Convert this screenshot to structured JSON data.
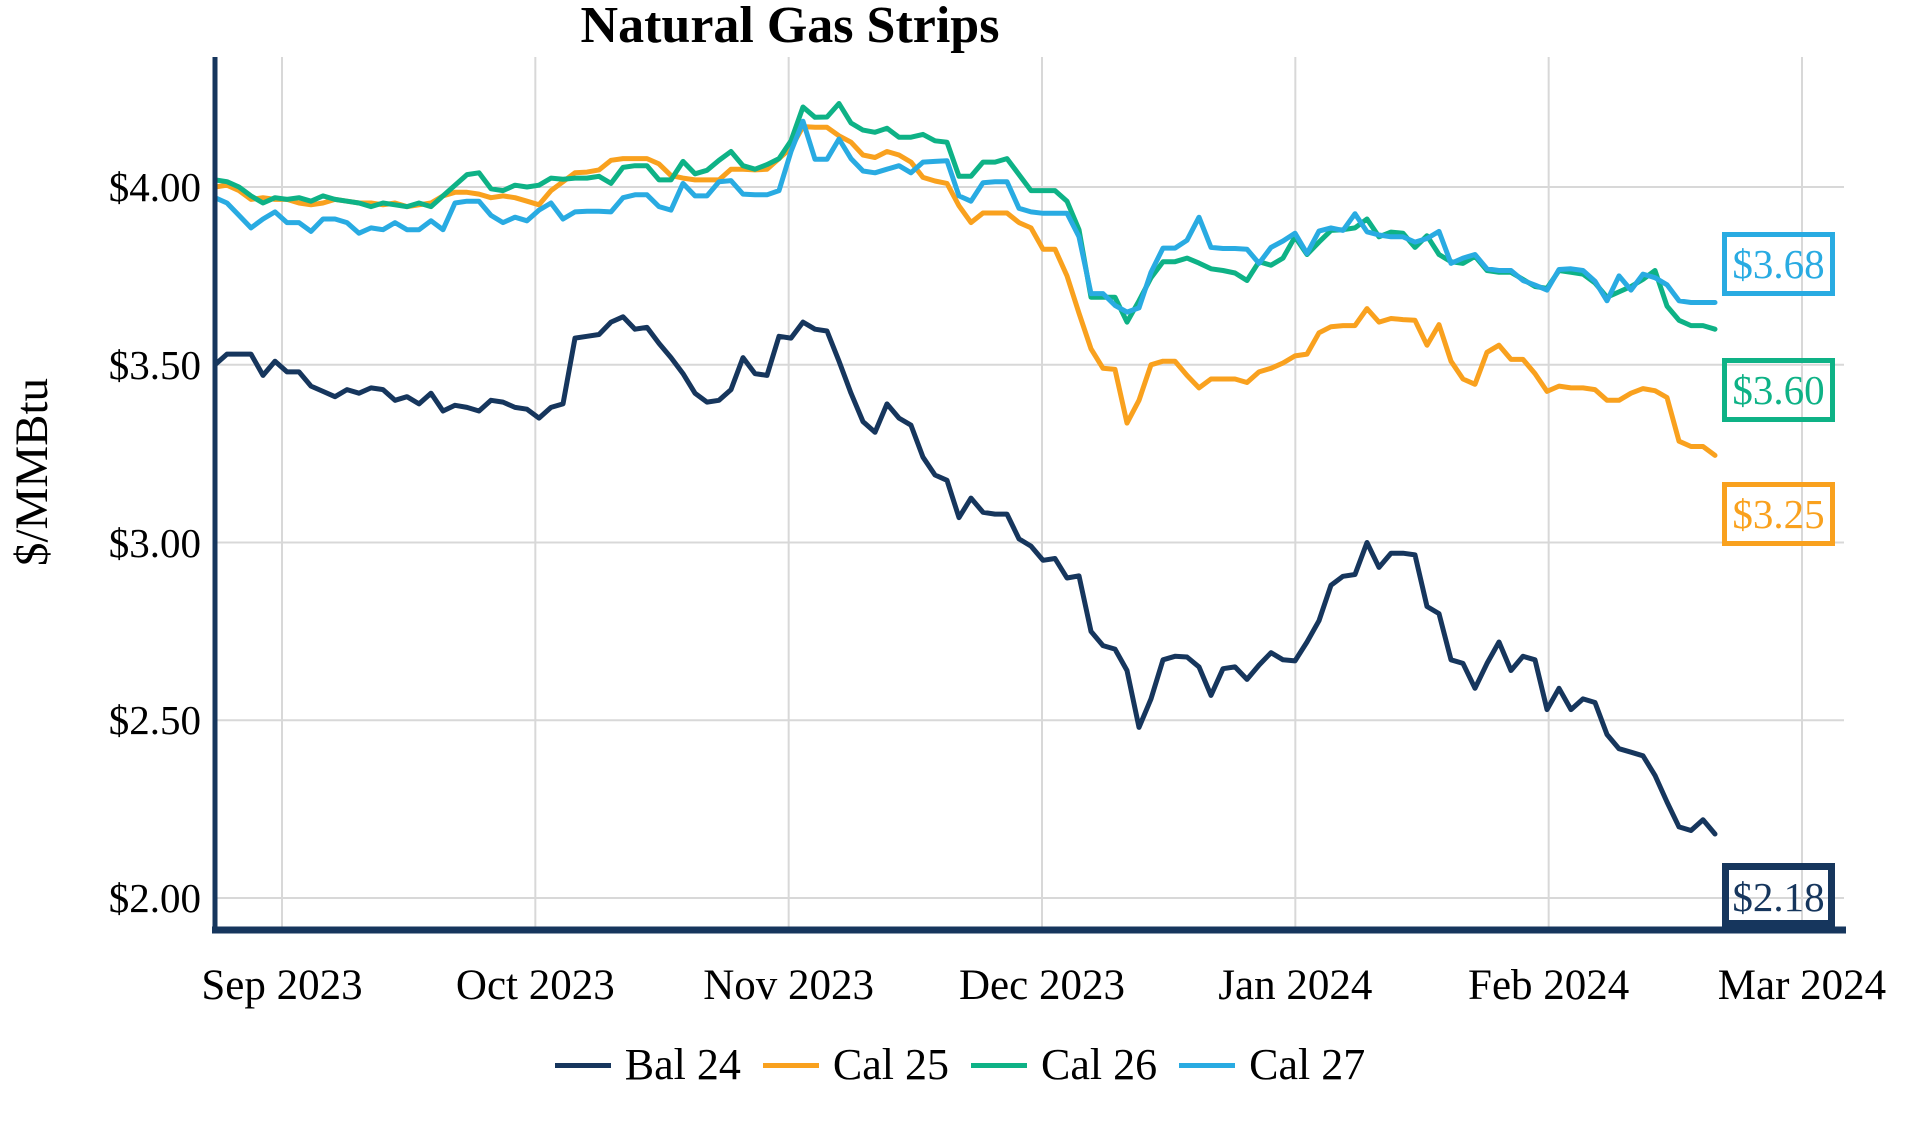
{
  "title": "Natural Gas Strips",
  "y_axis": {
    "label": "$/MMBtu",
    "tick_labels": [
      "$4.00",
      "$3.50",
      "$3.00",
      "$2.50",
      "$2.00"
    ],
    "tick_values": [
      4.0,
      3.5,
      3.0,
      2.5,
      2.0
    ]
  },
  "x_axis": {
    "tick_labels": [
      "Sep 2023",
      "Oct 2023",
      "Nov 2023",
      "Dec 2023",
      "Jan 2024",
      "Feb 2024",
      "Mar 2024"
    ]
  },
  "colors": {
    "bal24": "#16365D",
    "cal25": "#F9A11E",
    "cal26": "#0EB286",
    "cal27": "#29ABE2",
    "gridline": "#D8D8D8",
    "axis": "#16365D"
  },
  "chart_data": {
    "type": "line",
    "title": "Natural Gas Strips",
    "ylabel": "$/MMBtu",
    "xlabel": "",
    "x_tick_labels": [
      "Sep 2023",
      "Oct 2023",
      "Nov 2023",
      "Dec 2023",
      "Jan 2024",
      "Feb 2024",
      "Mar 2024"
    ],
    "y_tick_labels": [
      "$4.00",
      "$3.50",
      "$3.00",
      "$2.50",
      "$2.00"
    ],
    "y_tick_values": [
      4.0,
      3.5,
      3.0,
      2.5,
      2.0
    ],
    "ylim": [
      1.91,
      4.37
    ],
    "grid": true,
    "legend_position": "bottom",
    "series": [
      {
        "name": "Bal 24",
        "color": "#16365D",
        "end_label": "$2.18",
        "values": [
          3.5,
          3.53,
          3.53,
          3.53,
          3.47,
          3.51,
          3.48,
          3.48,
          3.44,
          3.425,
          3.41,
          3.43,
          3.42,
          3.435,
          3.43,
          3.4,
          3.41,
          3.39,
          3.42,
          3.37,
          3.386,
          3.38,
          3.37,
          3.4,
          3.395,
          3.38,
          3.375,
          3.35,
          3.38,
          3.39,
          3.575,
          3.58,
          3.585,
          3.62,
          3.635,
          3.6,
          3.605,
          3.56,
          3.52,
          3.475,
          3.42,
          3.395,
          3.4,
          3.43,
          3.52,
          3.475,
          3.47,
          3.58,
          3.575,
          3.62,
          3.6,
          3.595,
          3.51,
          3.42,
          3.34,
          3.31,
          3.39,
          3.35,
          3.33,
          3.24,
          3.19,
          3.175,
          3.07,
          3.125,
          3.085,
          3.08,
          3.08,
          3.01,
          2.99,
          2.95,
          2.955,
          2.9,
          2.906,
          2.75,
          2.71,
          2.7,
          2.64,
          2.48,
          2.56,
          2.67,
          2.68,
          2.678,
          2.65,
          2.57,
          2.645,
          2.65,
          2.615,
          2.655,
          2.69,
          2.67,
          2.667,
          2.72,
          2.78,
          2.88,
          2.905,
          2.91,
          3.0,
          2.93,
          2.97,
          2.97,
          2.965,
          2.82,
          2.8,
          2.67,
          2.66,
          2.59,
          2.66,
          2.72,
          2.64,
          2.68,
          2.67,
          2.53,
          2.59,
          2.53,
          2.56,
          2.55,
          2.46,
          2.42,
          2.41,
          2.4,
          2.345,
          2.27,
          2.2,
          2.19,
          2.22,
          2.18
        ]
      },
      {
        "name": "Cal 25",
        "color": "#F9A11E",
        "end_label": "$3.25",
        "values": [
          4.0,
          4.005,
          3.99,
          3.965,
          3.97,
          3.965,
          3.965,
          3.955,
          3.95,
          3.955,
          3.965,
          3.96,
          3.955,
          3.955,
          3.95,
          3.955,
          3.945,
          3.95,
          3.955,
          3.975,
          3.985,
          3.985,
          3.98,
          3.97,
          3.975,
          3.97,
          3.96,
          3.95,
          3.99,
          4.015,
          4.04,
          4.042,
          4.048,
          4.075,
          4.08,
          4.08,
          4.08,
          4.065,
          4.032,
          4.025,
          4.02,
          4.02,
          4.02,
          4.05,
          4.05,
          4.048,
          4.05,
          4.08,
          4.11,
          4.17,
          4.168,
          4.168,
          4.144,
          4.126,
          4.09,
          4.083,
          4.1,
          4.09,
          4.07,
          4.027,
          4.017,
          4.01,
          3.947,
          3.9,
          3.927,
          3.927,
          3.927,
          3.9,
          3.885,
          3.825,
          3.825,
          3.75,
          3.645,
          3.545,
          3.49,
          3.487,
          3.336,
          3.4,
          3.5,
          3.51,
          3.51,
          3.47,
          3.435,
          3.46,
          3.46,
          3.46,
          3.45,
          3.48,
          3.49,
          3.505,
          3.525,
          3.53,
          3.59,
          3.607,
          3.61,
          3.61,
          3.658,
          3.62,
          3.63,
          3.627,
          3.625,
          3.555,
          3.613,
          3.51,
          3.46,
          3.445,
          3.535,
          3.555,
          3.515,
          3.515,
          3.475,
          3.425,
          3.44,
          3.435,
          3.435,
          3.43,
          3.4,
          3.4,
          3.42,
          3.433,
          3.427,
          3.408,
          3.285,
          3.27,
          3.27,
          3.245
        ]
      },
      {
        "name": "Cal 26",
        "color": "#0EB286",
        "end_label": "$3.60",
        "values": [
          4.02,
          4.015,
          4.0,
          3.975,
          3.955,
          3.97,
          3.965,
          3.97,
          3.96,
          3.975,
          3.965,
          3.96,
          3.955,
          3.945,
          3.955,
          3.95,
          3.945,
          3.955,
          3.945,
          3.975,
          4.005,
          4.035,
          4.04,
          3.995,
          3.99,
          4.005,
          4.0,
          4.005,
          4.025,
          4.022,
          4.025,
          4.025,
          4.03,
          4.01,
          4.055,
          4.06,
          4.06,
          4.02,
          4.02,
          4.072,
          4.037,
          4.047,
          4.075,
          4.1,
          4.06,
          4.05,
          4.063,
          4.08,
          4.13,
          4.225,
          4.196,
          4.197,
          4.235,
          4.18,
          4.16,
          4.154,
          4.165,
          4.14,
          4.14,
          4.148,
          4.13,
          4.126,
          4.03,
          4.03,
          4.07,
          4.07,
          4.08,
          4.035,
          3.99,
          3.99,
          3.99,
          3.96,
          3.88,
          3.69,
          3.69,
          3.69,
          3.62,
          3.68,
          3.745,
          3.79,
          3.79,
          3.8,
          3.786,
          3.77,
          3.765,
          3.758,
          3.737,
          3.79,
          3.78,
          3.8,
          3.86,
          3.81,
          3.845,
          3.878,
          3.88,
          3.885,
          3.91,
          3.86,
          3.873,
          3.87,
          3.83,
          3.863,
          3.81,
          3.79,
          3.785,
          3.805,
          3.765,
          3.76,
          3.76,
          3.74,
          3.72,
          3.715,
          3.765,
          3.76,
          3.755,
          3.73,
          3.69,
          3.705,
          3.72,
          3.74,
          3.765,
          3.665,
          3.625,
          3.61,
          3.61,
          3.6
        ]
      },
      {
        "name": "Cal 27",
        "color": "#29ABE2",
        "end_label": "$3.68",
        "values": [
          3.97,
          3.955,
          3.92,
          3.885,
          3.91,
          3.93,
          3.9,
          3.9,
          3.875,
          3.91,
          3.91,
          3.9,
          3.87,
          3.885,
          3.88,
          3.9,
          3.88,
          3.88,
          3.905,
          3.88,
          3.955,
          3.96,
          3.96,
          3.92,
          3.9,
          3.915,
          3.905,
          3.935,
          3.955,
          3.91,
          3.93,
          3.932,
          3.932,
          3.93,
          3.97,
          3.978,
          3.978,
          3.945,
          3.935,
          4.01,
          3.975,
          3.975,
          4.015,
          4.018,
          3.98,
          3.978,
          3.978,
          3.99,
          4.1,
          4.185,
          4.078,
          4.078,
          4.135,
          4.08,
          4.045,
          4.04,
          4.05,
          4.06,
          4.04,
          4.07,
          4.072,
          4.074,
          3.975,
          3.96,
          4.012,
          4.015,
          4.015,
          3.94,
          3.93,
          3.926,
          3.926,
          3.926,
          3.86,
          3.7,
          3.7,
          3.667,
          3.648,
          3.66,
          3.76,
          3.828,
          3.828,
          3.85,
          3.915,
          3.83,
          3.827,
          3.827,
          3.825,
          3.785,
          3.83,
          3.848,
          3.87,
          3.813,
          3.876,
          3.885,
          3.878,
          3.925,
          3.874,
          3.865,
          3.86,
          3.86,
          3.845,
          3.855,
          3.875,
          3.785,
          3.8,
          3.81,
          3.77,
          3.765,
          3.765,
          3.737,
          3.724,
          3.71,
          3.768,
          3.77,
          3.765,
          3.735,
          3.68,
          3.75,
          3.71,
          3.755,
          3.745,
          3.725,
          3.68,
          3.675,
          3.675,
          3.675
        ]
      }
    ]
  }
}
